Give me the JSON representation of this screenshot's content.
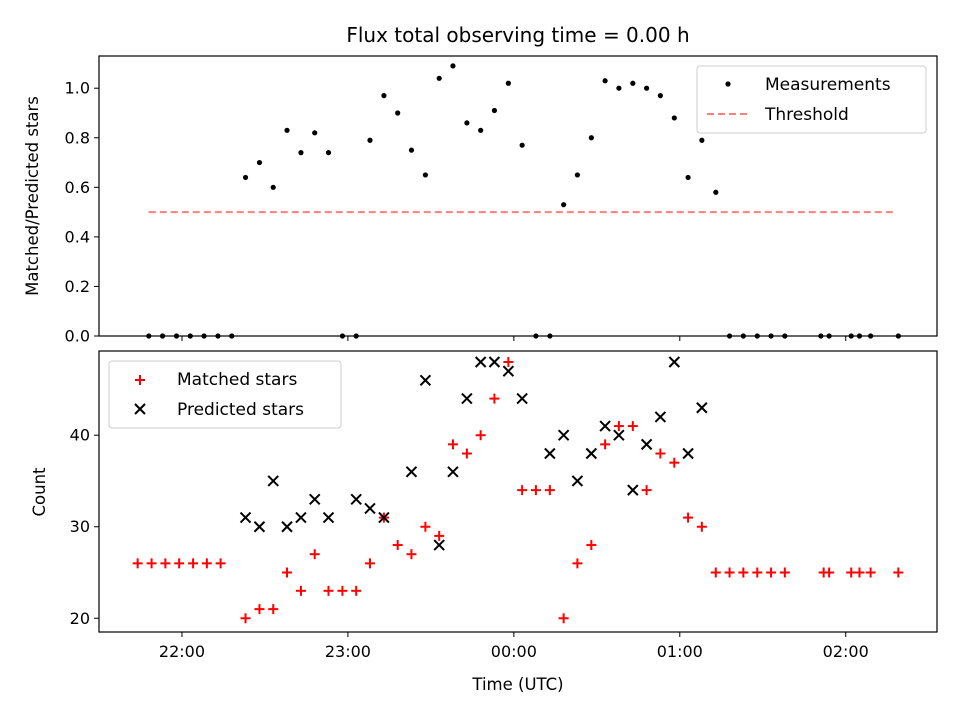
{
  "chart_data": [
    {
      "type": "scatter",
      "title": "Flux total observing time = 0.00 h",
      "xlabel": "",
      "ylabel": "Matched/Predicted stars",
      "ylim": [
        0,
        1.13
      ],
      "yticks": [
        "0.0",
        "0.2",
        "0.4",
        "0.6",
        "0.8",
        "1.0"
      ],
      "yticks_values": [
        0,
        0.2,
        0.4,
        0.6,
        0.8,
        1.0
      ],
      "legend": "top-right",
      "colors": {
        "measurements": "#000000",
        "threshold": "#ff7f7f"
      },
      "series": [
        {
          "name": "Measurements",
          "x": [
            -2.2,
            -2.117,
            -2.033,
            -1.95,
            -1.867,
            -1.783,
            -1.7,
            -1.617,
            -1.533,
            -1.45,
            -1.367,
            -1.283,
            -1.2,
            -1.117,
            -1.033,
            -0.95,
            -0.867,
            -0.783,
            -0.7,
            -0.617,
            -0.533,
            -0.45,
            -0.367,
            -0.283,
            -0.2,
            -0.117,
            -0.033,
            0.05,
            0.133,
            0.217,
            0.3,
            0.383,
            0.467,
            0.55,
            0.633,
            0.717,
            0.8,
            0.883,
            0.967,
            1.05,
            1.133,
            1.217,
            1.3,
            1.383,
            1.467,
            1.55,
            1.633,
            1.85,
            1.9,
            2.033,
            2.083,
            2.15,
            2.317
          ],
          "y": [
            0,
            0,
            0,
            0,
            0,
            0,
            0,
            0.64,
            0.7,
            0.6,
            0.83,
            0.74,
            0.82,
            0.74,
            0,
            0,
            0.79,
            0.97,
            0.9,
            0.75,
            0.65,
            1.04,
            1.09,
            0.86,
            0.83,
            0.91,
            1.02,
            0.77,
            0,
            0,
            0.53,
            0.65,
            0.8,
            1.03,
            1.0,
            1.02,
            1.0,
            0.97,
            0.88,
            0.64,
            0.79,
            0.58,
            0,
            0,
            0,
            0,
            0,
            0,
            0,
            0,
            0,
            0,
            0
          ]
        },
        {
          "name": "Threshold",
          "style": "dashed-line",
          "x": [
            -2.2,
            2.3
          ],
          "y": [
            0.5,
            0.5
          ]
        }
      ]
    },
    {
      "type": "scatter",
      "title": "",
      "xlabel": "Time (UTC)",
      "ylabel": "Count",
      "ylim": [
        18.5,
        49.2
      ],
      "xlim": [
        -2.5,
        2.55
      ],
      "xticks": [
        "22:00",
        "23:00",
        "00:00",
        "01:00",
        "02:00"
      ],
      "xticks_values": [
        -2,
        -1,
        0,
        1,
        2
      ],
      "xticks_unit": "hours relative to 00:00 UTC",
      "yticks": [
        "20",
        "30",
        "40"
      ],
      "yticks_values": [
        20,
        30,
        40
      ],
      "legend": "top-left",
      "colors": {
        "matched": "#ff0000",
        "predicted": "#000000"
      },
      "series": [
        {
          "name": "Matched stars",
          "marker": "plus",
          "x": [
            -2.267,
            -2.183,
            -2.1,
            -2.017,
            -1.933,
            -1.85,
            -1.767,
            -1.617,
            -1.533,
            -1.45,
            -1.367,
            -1.283,
            -1.2,
            -1.117,
            -1.033,
            -0.95,
            -0.867,
            -0.783,
            -0.7,
            -0.617,
            -0.533,
            -0.45,
            -0.367,
            -0.283,
            -0.2,
            -0.117,
            -0.033,
            0.05,
            0.133,
            0.217,
            0.3,
            0.383,
            0.467,
            0.55,
            0.633,
            0.717,
            0.8,
            0.883,
            0.967,
            1.05,
            1.133,
            1.217,
            1.3,
            1.383,
            1.467,
            1.55,
            1.633,
            1.867,
            1.9,
            2.033,
            2.083,
            2.15,
            2.317
          ],
          "y": [
            26,
            26,
            26,
            26,
            26,
            26,
            26,
            20,
            21,
            21,
            25,
            23,
            27,
            23,
            23,
            23,
            26,
            31,
            28,
            27,
            30,
            29,
            39,
            38,
            40,
            44,
            48,
            34,
            34,
            34,
            20,
            26,
            28,
            39,
            41,
            41,
            34,
            38,
            37,
            31,
            30,
            25,
            25,
            25,
            25,
            25,
            25,
            25,
            25,
            25,
            25,
            25,
            25
          ]
        },
        {
          "name": "Predicted stars",
          "marker": "x",
          "x": [
            -1.617,
            -1.533,
            -1.45,
            -1.367,
            -1.283,
            -1.2,
            -1.117,
            -0.95,
            -0.867,
            -0.783,
            -0.617,
            -0.533,
            -0.45,
            -0.367,
            -0.283,
            -0.2,
            -0.117,
            -0.033,
            0.05,
            0.217,
            0.3,
            0.383,
            0.467,
            0.55,
            0.633,
            0.717,
            0.8,
            0.883,
            0.967,
            1.05,
            1.133
          ],
          "y": [
            31,
            30,
            35,
            30,
            31,
            33,
            31,
            33,
            32,
            31,
            36,
            46,
            28,
            36,
            44,
            48,
            48,
            47,
            44,
            38,
            40,
            35,
            38,
            41,
            40,
            34,
            39,
            42,
            48,
            38,
            43
          ]
        }
      ]
    }
  ]
}
